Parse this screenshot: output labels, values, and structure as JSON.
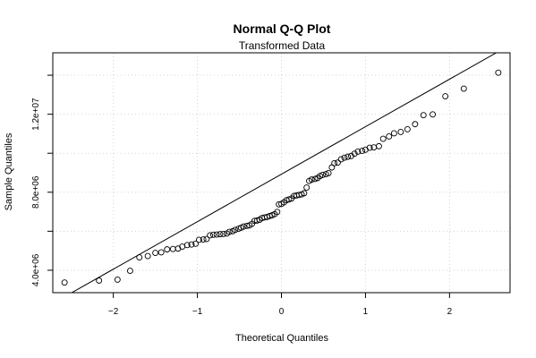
{
  "chart_data": {
    "type": "scatter",
    "title": "Normal Q-Q Plot",
    "subtitle": "Transformed Data",
    "xlabel": "Theoretical Quantiles",
    "ylabel": "Sample Quantiles",
    "xlim": [
      -2.72,
      2.72
    ],
    "ylim": [
      2850000,
      15150000
    ],
    "x_ticks": [
      -2,
      -1,
      0,
      1,
      2
    ],
    "x_tick_labels": [
      "−2",
      "−1",
      "0",
      "1",
      "2"
    ],
    "y_ticks": [
      4000000,
      8000000,
      12000000
    ],
    "y_tick_labels": [
      "4.0e+06",
      "8.0e+06",
      "1.2e+07"
    ],
    "y_minor_ticks": [
      6000000,
      10000000,
      14000000
    ],
    "grid": true,
    "reference_line": {
      "x": [
        -2.72,
        2.72
      ],
      "y": [
        2300000,
        15550000
      ]
    },
    "points": [
      [
        -2.58,
        3370000.0
      ],
      [
        -2.17,
        3470000.0
      ],
      [
        -1.95,
        3520000.0
      ],
      [
        -1.8,
        3970000.0
      ],
      [
        -1.69,
        4660000.0
      ],
      [
        -1.59,
        4730000.0
      ],
      [
        -1.5,
        4890000.0
      ],
      [
        -1.43,
        4920000.0
      ],
      [
        -1.36,
        5070000.0
      ],
      [
        -1.29,
        5090000.0
      ],
      [
        -1.23,
        5110000.0
      ],
      [
        -1.18,
        5210000.0
      ],
      [
        -1.12,
        5290000.0
      ],
      [
        -1.07,
        5320000.0
      ],
      [
        -1.02,
        5360000.0
      ],
      [
        -0.98,
        5560000.0
      ],
      [
        -0.93,
        5580000.0
      ],
      [
        -0.89,
        5600000.0
      ],
      [
        -0.85,
        5790000.0
      ],
      [
        -0.81,
        5820000.0
      ],
      [
        -0.77,
        5830000.0
      ],
      [
        -0.73,
        5850000.0
      ],
      [
        -0.69,
        5860000.0
      ],
      [
        -0.65,
        5880000.0
      ],
      [
        -0.62,
        5970000.0
      ],
      [
        -0.58,
        6000000.0
      ],
      [
        -0.55,
        6070000.0
      ],
      [
        -0.51,
        6130000.0
      ],
      [
        -0.48,
        6180000.0
      ],
      [
        -0.45,
        6240000.0
      ],
      [
        -0.41,
        6280000.0
      ],
      [
        -0.38,
        6300000.0
      ],
      [
        -0.35,
        6380000.0
      ],
      [
        -0.32,
        6530000.0
      ],
      [
        -0.29,
        6550000.0
      ],
      [
        -0.26,
        6590000.0
      ],
      [
        -0.23,
        6680000.0
      ],
      [
        -0.2,
        6710000.0
      ],
      [
        -0.17,
        6730000.0
      ],
      [
        -0.14,
        6780000.0
      ],
      [
        -0.11,
        6820000.0
      ],
      [
        -0.08,
        6880000.0
      ],
      [
        -0.05,
        6990000.0
      ],
      [
        -0.03,
        7380000.0
      ],
      [
        0.0,
        7400000.0
      ],
      [
        0.03,
        7480000.0
      ],
      [
        0.06,
        7590000.0
      ],
      [
        0.09,
        7630000.0
      ],
      [
        0.12,
        7680000.0
      ],
      [
        0.15,
        7810000.0
      ],
      [
        0.18,
        7840000.0
      ],
      [
        0.21,
        7860000.0
      ],
      [
        0.24,
        7890000.0
      ],
      [
        0.27,
        7950000.0
      ],
      [
        0.3,
        8240000.0
      ],
      [
        0.33,
        8580000.0
      ],
      [
        0.36,
        8650000.0
      ],
      [
        0.4,
        8680000.0
      ],
      [
        0.43,
        8730000.0
      ],
      [
        0.46,
        8830000.0
      ],
      [
        0.49,
        8890000.0
      ],
      [
        0.53,
        8930000.0
      ],
      [
        0.56,
        8980000.0
      ],
      [
        0.6,
        9270000.0
      ],
      [
        0.63,
        9490000.0
      ],
      [
        0.67,
        9520000.0
      ],
      [
        0.71,
        9690000.0
      ],
      [
        0.75,
        9770000.0
      ],
      [
        0.79,
        9820000.0
      ],
      [
        0.83,
        9860000.0
      ],
      [
        0.87,
        9980000.0
      ],
      [
        0.91,
        10080000.0
      ],
      [
        0.96,
        10120000.0
      ],
      [
        1.0,
        10180000.0
      ],
      [
        1.05,
        10280000.0
      ],
      [
        1.1,
        10300000.0
      ],
      [
        1.16,
        10360000.0
      ],
      [
        1.21,
        10740000.0
      ],
      [
        1.28,
        10860000.0
      ],
      [
        1.34,
        11020000.0
      ],
      [
        1.42,
        11090000.0
      ],
      [
        1.5,
        11230000.0
      ],
      [
        1.59,
        11490000.0
      ],
      [
        1.69,
        11950000.0
      ],
      [
        1.8,
        11990000.0
      ],
      [
        1.95,
        12920000.0
      ],
      [
        2.17,
        13310000.0
      ],
      [
        2.58,
        14130000.0
      ]
    ]
  }
}
